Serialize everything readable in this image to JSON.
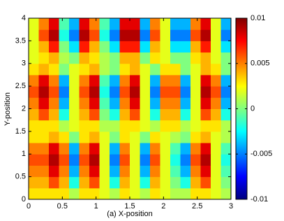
{
  "chart_data": {
    "type": "heatmap",
    "xlabel": "(a) X-position",
    "ylabel": "Y-position",
    "xlim": [
      0,
      3
    ],
    "ylim": [
      0,
      4
    ],
    "xticks": [
      0,
      0.5,
      1,
      1.5,
      2,
      2.5,
      3
    ],
    "yticks": [
      0,
      0.5,
      1,
      1.5,
      2,
      2.5,
      3,
      3.5,
      4
    ],
    "clim": [
      -0.01,
      0.01
    ],
    "cticks": [
      -0.01,
      -0.005,
      0,
      0.005,
      0.01
    ],
    "colormap": "jet",
    "x": [
      0.075,
      0.225,
      0.375,
      0.525,
      0.675,
      0.825,
      0.975,
      1.125,
      1.275,
      1.425,
      1.575,
      1.725,
      1.875,
      2.025,
      2.175,
      2.325,
      2.475,
      2.625,
      2.775,
      2.925
    ],
    "y": [
      0.125,
      0.375,
      0.625,
      0.875,
      1.125,
      1.375,
      1.625,
      1.875,
      2.125,
      2.375,
      2.625,
      2.875,
      3.125,
      3.375,
      3.625,
      3.875
    ],
    "z": [
      [
        0.003,
        0.003,
        0.003,
        0.003,
        0.001,
        0.003,
        0.003,
        0.002,
        0.001,
        0.003,
        0.002,
        0.001,
        0.003,
        0.002,
        0.001,
        0.001,
        0.003,
        0.003,
        0.002,
        0.001
      ],
      [
        0.004,
        0.004,
        0.006,
        0.004,
        -0.002,
        0.004,
        0.006,
        0.002,
        -0.002,
        0.004,
        0.002,
        -0.002,
        0.004,
        0.002,
        0,
        -0.002,
        0.004,
        0.006,
        0.002,
        0
      ],
      [
        0.005,
        0.005,
        0.008,
        0.005,
        -0.004,
        0.005,
        0.008,
        0.002,
        -0.004,
        0.005,
        0.002,
        -0.004,
        0.005,
        0.002,
        -0.001,
        -0.004,
        0.005,
        0.008,
        0.002,
        -0.001
      ],
      [
        0.006,
        0.006,
        0.009,
        0.006,
        -0.005,
        0.006,
        0.009,
        0.002,
        -0.005,
        0.006,
        0.002,
        -0.005,
        0.006,
        0.002,
        -0.002,
        -0.005,
        0.006,
        0.009,
        0.002,
        -0.002
      ],
      [
        0.005,
        0.005,
        0.008,
        0.005,
        -0.004,
        0.005,
        0.008,
        0.002,
        -0.004,
        0.005,
        0.002,
        -0.004,
        0.005,
        0.002,
        -0.001,
        -0.004,
        0.005,
        0.008,
        0.002,
        -0.001
      ],
      [
        0.003,
        0.003,
        0.004,
        0.003,
        0,
        0.003,
        0.004,
        0.002,
        0,
        0.003,
        0.002,
        0,
        0.003,
        0.002,
        0.001,
        0,
        0.003,
        0.004,
        0.002,
        0.001
      ],
      [
        0.003,
        0.003,
        0.003,
        0.001,
        0.002,
        0.003,
        0.003,
        0.001,
        0.001,
        0.003,
        0.003,
        0.002,
        0.001,
        0.003,
        0.003,
        0.001,
        0.002,
        0.003,
        0.003,
        0.001
      ],
      [
        0.004,
        0.006,
        0.004,
        -0.002,
        0.002,
        0.004,
        0.006,
        0,
        -0.002,
        0.004,
        0.006,
        0.002,
        -0.002,
        0.004,
        0.004,
        -0.002,
        0.002,
        0.006,
        0.004,
        -0.002
      ],
      [
        0.005,
        0.008,
        0.005,
        -0.004,
        0.002,
        0.005,
        0.008,
        -0.001,
        -0.004,
        0.005,
        0.008,
        0.002,
        -0.004,
        0.005,
        0.005,
        -0.004,
        0.002,
        0.008,
        0.005,
        -0.004
      ],
      [
        0.006,
        0.009,
        0.006,
        -0.005,
        0.002,
        0.006,
        0.009,
        -0.002,
        -0.005,
        0.006,
        0.009,
        0.002,
        -0.005,
        0.006,
        0.006,
        -0.005,
        0.002,
        0.009,
        0.006,
        -0.005
      ],
      [
        0.005,
        0.008,
        0.005,
        -0.004,
        0.002,
        0.005,
        0.008,
        -0.001,
        -0.004,
        0.005,
        0.008,
        0.002,
        -0.004,
        0.005,
        0.005,
        -0.004,
        0.002,
        0.008,
        0.005,
        -0.004
      ],
      [
        0.003,
        0.004,
        0.003,
        0,
        0.002,
        0.003,
        0.004,
        0.001,
        0,
        0.003,
        0.004,
        0.002,
        0,
        0.003,
        0.003,
        0,
        0.002,
        0.004,
        0.003,
        0
      ],
      [
        0.002,
        0.003,
        0.004,
        0.001,
        0,
        0.004,
        0.003,
        0.001,
        0,
        0.004,
        0.004,
        0,
        0.003,
        0.002,
        0,
        0,
        0.003,
        0.004,
        0.002,
        0
      ],
      [
        0.002,
        0.004,
        0.007,
        0,
        -0.003,
        0.007,
        0.004,
        0,
        -0.003,
        0.007,
        0.007,
        -0.003,
        0.004,
        0.002,
        -0.003,
        -0.003,
        0.004,
        0.007,
        0.002,
        -0.003
      ],
      [
        0.002,
        0.006,
        0.009,
        -0.002,
        -0.005,
        0.009,
        0.006,
        -0.002,
        -0.005,
        0.009,
        0.009,
        -0.005,
        0.006,
        0.002,
        -0.005,
        -0.005,
        0.006,
        0.009,
        0.002,
        -0.005
      ],
      [
        0.002,
        0.005,
        0.008,
        -0.001,
        -0.004,
        0.008,
        0.005,
        -0.001,
        -0.004,
        0.008,
        0.008,
        -0.004,
        0.005,
        0.002,
        -0.004,
        -0.004,
        0.005,
        0.008,
        0.002,
        -0.004
      ]
    ]
  }
}
